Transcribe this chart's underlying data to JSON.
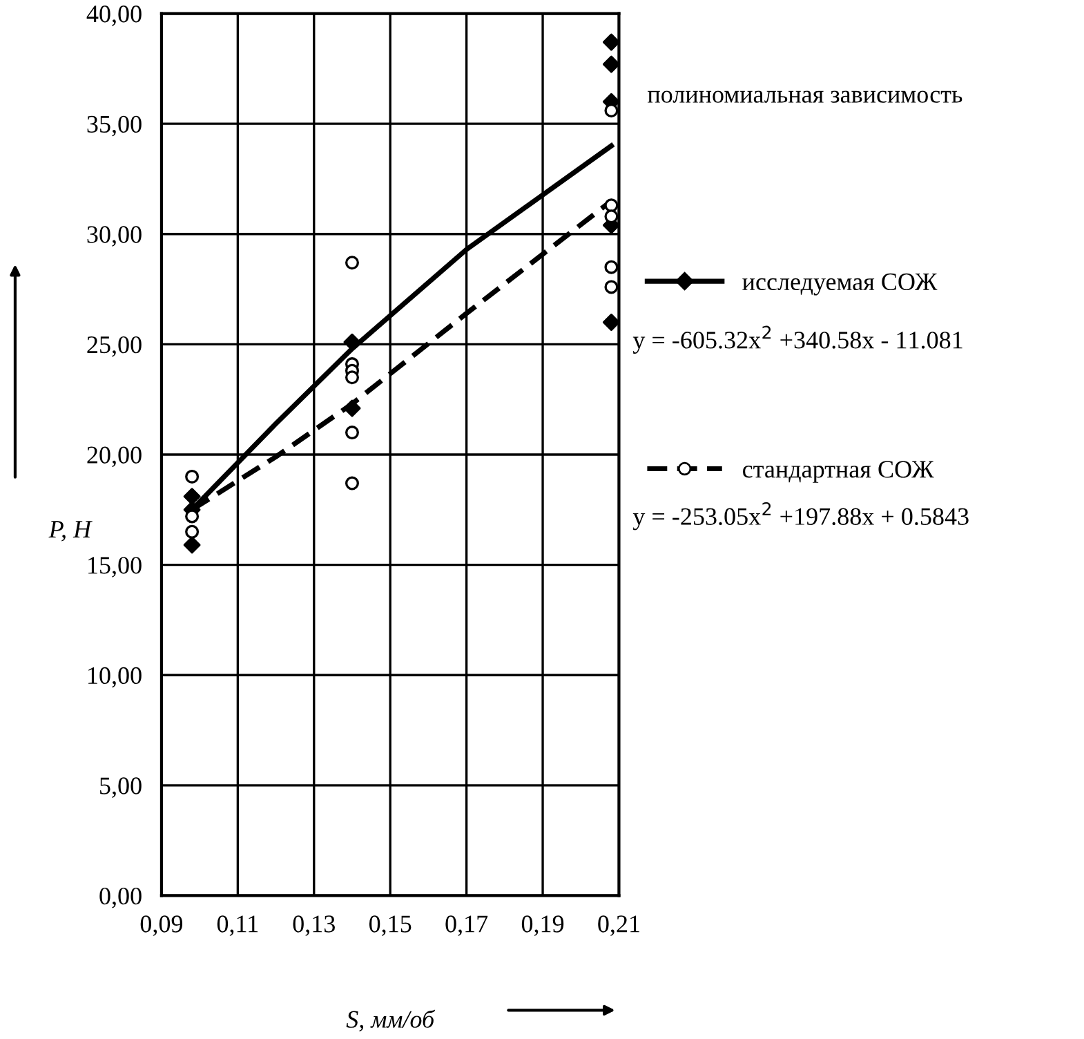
{
  "chart_data": {
    "type": "scatter",
    "legend_title": "полиномиальная зависимость",
    "xlabel": "S, мм/об",
    "ylabel": "P, H",
    "annotations": [
      "y = -605.32x$^{2}$ +340.58x - 11.081",
      "y = -253.05x$^{2}$ +197.88x + 0.5843"
    ],
    "series": [
      {
        "name": "исследуемая СОЖ",
        "marker": "diamond",
        "color": "#000000",
        "x": [
          0.098,
          0.098,
          0.098,
          0.14,
          0.14,
          0.208,
          0.208,
          0.208,
          0.208,
          0.208
        ],
        "values": [
          15.9,
          17.5,
          18.1,
          25.1,
          22.1,
          38.7,
          37.7,
          36.0,
          30.4,
          26.0
        ]
      },
      {
        "name": "стандартная СОЖ",
        "marker": "circle",
        "color": "#000000",
        "x": [
          0.098,
          0.098,
          0.098,
          0.14,
          0.14,
          0.14,
          0.14,
          0.14,
          0.14,
          0.208,
          0.208,
          0.208,
          0.208,
          0.208
        ],
        "values": [
          19.0,
          17.2,
          16.5,
          28.7,
          24.1,
          23.8,
          23.5,
          21.0,
          18.7,
          35.6,
          31.3,
          30.8,
          28.5,
          27.6
        ]
      },
      {
        "type": "line",
        "line_style": "solid",
        "color": "#000000",
        "x": [
          0.098,
          0.12,
          0.14,
          0.17,
          0.208
        ],
        "values": [
          17.5,
          21.4,
          24.8,
          29.3,
          34.0
        ]
      },
      {
        "type": "line",
        "line_style": "dashed",
        "color": "#000000",
        "x": [
          0.098,
          0.12,
          0.14,
          0.17,
          0.208
        ],
        "values": [
          17.5,
          19.9,
          22.3,
          26.4,
          31.5
        ]
      }
    ],
    "xlim": [
      0.09,
      0.21
    ],
    "xticks": [
      {
        "value": 0.09,
        "label": "0,09"
      },
      {
        "value": 0.11,
        "label": "0,11"
      },
      {
        "value": 0.13,
        "label": "0,13"
      },
      {
        "value": 0.15,
        "label": "0,15"
      },
      {
        "value": 0.17,
        "label": "0,17"
      },
      {
        "value": 0.19,
        "label": "0,19"
      },
      {
        "value": 0.21,
        "label": "0,21"
      }
    ],
    "ylim": [
      0,
      40
    ],
    "yticks": [
      {
        "value": 0,
        "label": "0,00"
      },
      {
        "value": 5,
        "label": "5,00"
      },
      {
        "value": 10,
        "label": "10,00"
      },
      {
        "value": 15,
        "label": "15,00"
      },
      {
        "value": 20,
        "label": "20,00"
      },
      {
        "value": 25,
        "label": "25,00"
      },
      {
        "value": 30,
        "label": "30,00"
      },
      {
        "value": 35,
        "label": "35,00"
      },
      {
        "value": 40,
        "label": "40,00"
      }
    ],
    "grid": true,
    "legend": "right"
  }
}
